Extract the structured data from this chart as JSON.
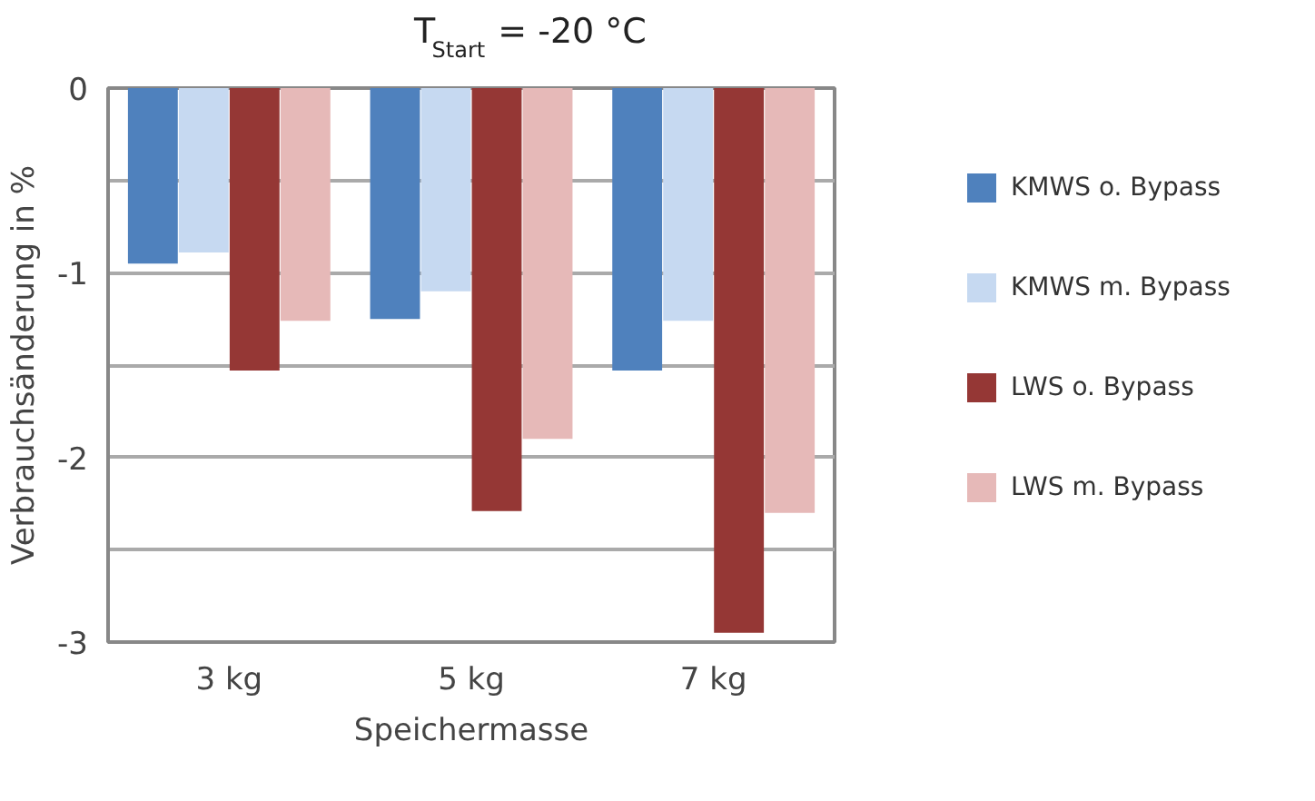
{
  "chart_data": {
    "type": "bar",
    "title": "T$_{Start}$ = -20 °C",
    "xlabel": "Speichermasse",
    "ylabel": "Verbrauchsänderung in %",
    "categories": [
      "3 kg",
      "5 kg",
      "7 kg"
    ],
    "series": [
      {
        "name": "KMWS o. Bypass",
        "color": "#4f81bd",
        "values": [
          -0.95,
          -1.25,
          -1.53
        ]
      },
      {
        "name": "KMWS m. Bypass",
        "color": "#c6d9f1",
        "values": [
          -0.89,
          -1.1,
          -1.26
        ]
      },
      {
        "name": "LWS o. Bypass",
        "color": "#953735",
        "values": [
          -1.53,
          -2.29,
          -2.95
        ]
      },
      {
        "name": "LWS m. Bypass",
        "color": "#e6b9b8",
        "values": [
          -1.26,
          -1.9,
          -2.3
        ]
      }
    ],
    "ylim": [
      -3,
      0
    ],
    "yticks": [
      0,
      {
        "value": -0.5,
        "label": null
      },
      -1,
      {
        "value": -1.5,
        "label": null
      },
      -2,
      {
        "value": -2.5,
        "label": null
      },
      -3
    ],
    "grid": "y",
    "legend": "right"
  }
}
